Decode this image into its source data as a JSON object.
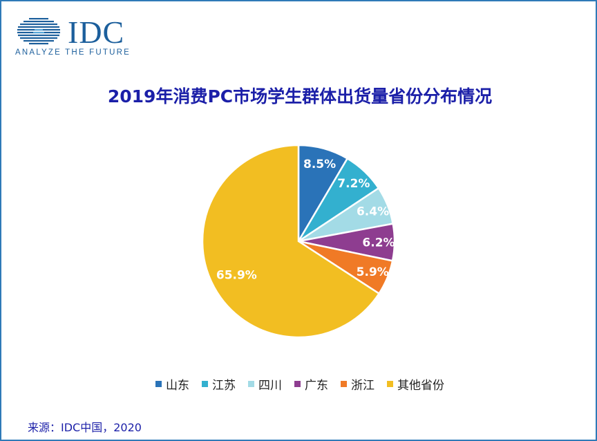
{
  "logo": {
    "word": "IDC",
    "tagline": "ANALYZE THE FUTURE",
    "color": "#1c5f9c"
  },
  "title": "2019年消费PC市场学生群体出货量省份分布情况",
  "source": "来源：IDC中国，2020",
  "chart_data": {
    "type": "pie",
    "title": "2019年消费PC市场学生群体出货量省份分布情况",
    "categories": [
      "山东",
      "江苏",
      "四川",
      "广东",
      "浙江",
      "其他省份"
    ],
    "values": [
      8.5,
      7.2,
      6.4,
      6.2,
      5.9,
      65.9
    ],
    "labels": [
      "8.5%",
      "7.2%",
      "6.4%",
      "6.2%",
      "5.9%",
      "65.9%"
    ],
    "colors": [
      "#2a73b8",
      "#33b0cf",
      "#a3dbe6",
      "#8e3d90",
      "#f07a26",
      "#f2be22"
    ],
    "legend_position": "bottom"
  }
}
